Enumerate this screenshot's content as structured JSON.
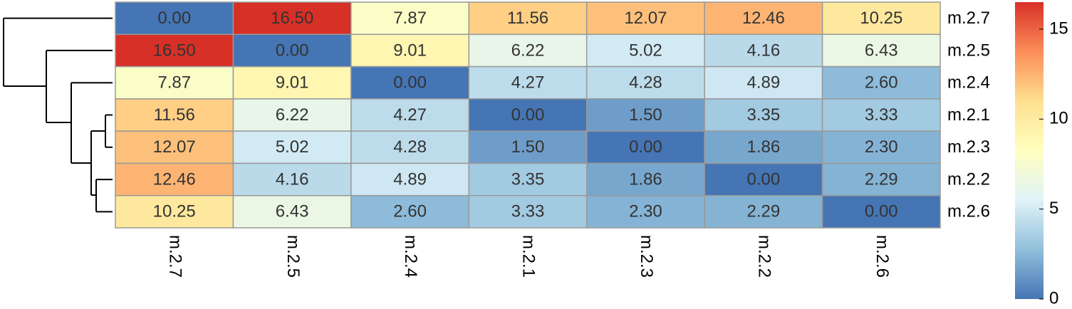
{
  "chart_data": {
    "type": "heatmap",
    "rows": [
      "m.2.7",
      "m.2.5",
      "m.2.4",
      "m.2.1",
      "m.2.3",
      "m.2.2",
      "m.2.6"
    ],
    "columns": [
      "m.2.7",
      "m.2.5",
      "m.2.4",
      "m.2.1",
      "m.2.3",
      "m.2.2",
      "m.2.6"
    ],
    "values": [
      [
        0,
        16.5,
        7.87,
        11.56,
        12.07,
        12.46,
        10.25
      ],
      [
        16.5,
        0,
        9.01,
        6.22,
        5.02,
        4.16,
        6.43
      ],
      [
        7.87,
        9.01,
        0,
        4.27,
        4.28,
        4.89,
        2.6
      ],
      [
        11.56,
        6.22,
        4.27,
        0,
        1.5,
        3.35,
        3.33
      ],
      [
        12.07,
        5.02,
        4.28,
        1.5,
        0,
        1.86,
        2.3
      ],
      [
        12.46,
        4.16,
        4.89,
        3.35,
        1.86,
        0,
        2.29
      ],
      [
        10.25,
        6.43,
        2.6,
        3.33,
        2.3,
        2.29,
        0
      ]
    ],
    "value_labels": [
      [
        "0.00",
        "16.50",
        "7.87",
        "11.56",
        "12.07",
        "12.46",
        "10.25"
      ],
      [
        "16.50",
        "0.00",
        "9.01",
        "6.22",
        "5.02",
        "4.16",
        "6.43"
      ],
      [
        "7.87",
        "9.01",
        "0.00",
        "4.27",
        "4.28",
        "4.89",
        "2.60"
      ],
      [
        "11.56",
        "6.22",
        "4.27",
        "0.00",
        "1.50",
        "3.35",
        "3.33"
      ],
      [
        "12.07",
        "5.02",
        "4.28",
        "1.50",
        "0.00",
        "1.86",
        "2.30"
      ],
      [
        "12.46",
        "4.16",
        "4.89",
        "3.35",
        "1.86",
        "0.00",
        "2.29"
      ],
      [
        "10.25",
        "6.43",
        "2.60",
        "3.33",
        "2.30",
        "2.29",
        "0.00"
      ]
    ],
    "colors": [
      "#4575b4",
      "#91bfdb",
      "#e0f3f8",
      "#ffffbf",
      "#fee090",
      "#fc8d59",
      "#d73027"
    ],
    "zlim": [
      0,
      16.5
    ],
    "zticks": [
      0,
      5,
      10,
      15
    ]
  }
}
